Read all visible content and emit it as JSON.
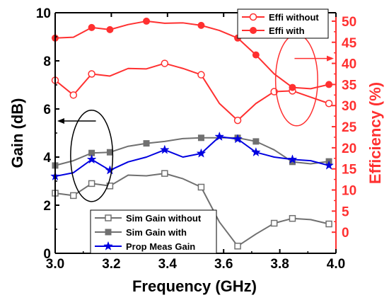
{
  "chart_data": {
    "type": "line",
    "xlabel": "Frequency (GHz)",
    "ylabel_left": "Gain (dB)",
    "ylabel_right": "Efficiency (%)",
    "xlim": [
      3.0,
      4.0
    ],
    "ylim_left": [
      0,
      10
    ],
    "ylim_right": [
      -5,
      52
    ],
    "x_ticks": [
      "3.0",
      "3.2",
      "3.4",
      "3.6",
      "3.8",
      "4.0"
    ],
    "y_left_ticks": [
      "0",
      "2",
      "4",
      "6",
      "8",
      "10"
    ],
    "y_right_ticks": [
      "0",
      "5",
      "10",
      "15",
      "20",
      "25",
      "30",
      "35",
      "40",
      "45",
      "50"
    ],
    "grid": false,
    "colors": {
      "gray": "#707070",
      "blue": "#0000e0",
      "red": "#ff3030",
      "black": "#000000"
    },
    "series": [
      {
        "name": "Sim Gain without",
        "axis": "left",
        "color": "#707070",
        "marker": "square-open",
        "x": [
          3.0,
          3.065,
          3.13,
          3.195,
          3.26,
          3.325,
          3.39,
          3.455,
          3.52,
          3.585,
          3.65,
          3.715,
          3.78,
          3.845,
          3.91,
          3.975
        ],
        "y": [
          2.5,
          2.4,
          2.9,
          2.8,
          3.25,
          3.22,
          3.32,
          3.1,
          2.75,
          1.3,
          0.3,
          0.8,
          1.25,
          1.45,
          1.4,
          1.22
        ],
        "marker_x": [
          3.0,
          3.065,
          3.13,
          3.195,
          3.39,
          3.52,
          3.65,
          3.78,
          3.845,
          3.975
        ],
        "marker_y": [
          2.5,
          2.4,
          2.9,
          2.8,
          3.32,
          2.75,
          0.3,
          1.25,
          1.45,
          1.22
        ]
      },
      {
        "name": "Sim Gain with",
        "axis": "left",
        "color": "#707070",
        "marker": "square-filled",
        "x": [
          3.0,
          3.065,
          3.13,
          3.195,
          3.26,
          3.325,
          3.39,
          3.455,
          3.52,
          3.585,
          3.65,
          3.715,
          3.78,
          3.845,
          3.91,
          3.975
        ],
        "y": [
          3.65,
          3.85,
          4.17,
          4.2,
          4.45,
          4.57,
          4.65,
          4.77,
          4.8,
          4.8,
          4.8,
          4.65,
          4.3,
          3.8,
          3.72,
          3.82
        ],
        "marker_x": [
          3.0,
          3.13,
          3.195,
          3.325,
          3.52,
          3.65,
          3.715,
          3.845,
          3.975
        ],
        "marker_y": [
          3.65,
          4.17,
          4.2,
          4.57,
          4.8,
          4.8,
          4.65,
          3.8,
          3.82
        ]
      },
      {
        "name": "Prop Meas Gain",
        "axis": "left",
        "color": "#0000e0",
        "marker": "star",
        "x": [
          3.0,
          3.065,
          3.13,
          3.195,
          3.26,
          3.325,
          3.39,
          3.455,
          3.52,
          3.585,
          3.65,
          3.715,
          3.78,
          3.845,
          3.91,
          3.975
        ],
        "y": [
          3.2,
          3.35,
          3.9,
          3.45,
          3.8,
          4.0,
          4.3,
          4.0,
          4.15,
          4.85,
          4.75,
          4.2,
          4.0,
          3.9,
          3.85,
          3.65
        ],
        "marker_x": [
          3.0,
          3.13,
          3.195,
          3.39,
          3.52,
          3.585,
          3.65,
          3.715,
          3.845,
          3.975
        ],
        "marker_y": [
          3.2,
          3.9,
          3.45,
          4.3,
          4.15,
          4.85,
          4.75,
          4.2,
          3.9,
          3.65
        ]
      },
      {
        "name": "Effi without",
        "axis": "right",
        "color": "#ff3030",
        "marker": "circle-open",
        "x": [
          3.0,
          3.065,
          3.13,
          3.195,
          3.26,
          3.325,
          3.39,
          3.455,
          3.52,
          3.585,
          3.65,
          3.715,
          3.78,
          3.845,
          3.91,
          3.975
        ],
        "y": [
          36.0,
          32.5,
          37.5,
          37.0,
          38.8,
          38.7,
          40.0,
          38.8,
          37.3,
          30.5,
          26.5,
          30.5,
          33.3,
          33.5,
          32.0,
          30.5
        ],
        "marker_x": [
          3.0,
          3.065,
          3.13,
          3.39,
          3.52,
          3.65,
          3.78,
          3.845,
          3.975
        ],
        "marker_y": [
          36.0,
          32.5,
          37.5,
          40.0,
          37.3,
          26.5,
          33.3,
          33.5,
          30.5
        ]
      },
      {
        "name": "Effi with",
        "axis": "right",
        "color": "#ff3030",
        "marker": "circle-filled",
        "x": [
          3.0,
          3.065,
          3.13,
          3.195,
          3.26,
          3.325,
          3.39,
          3.455,
          3.52,
          3.585,
          3.65,
          3.715,
          3.78,
          3.845,
          3.91,
          3.975
        ],
        "y": [
          46.0,
          46.2,
          48.5,
          48.0,
          49.2,
          50.0,
          49.5,
          49.6,
          49.0,
          47.8,
          46.0,
          42.0,
          37.5,
          34.3,
          34.0,
          35.0
        ],
        "marker_x": [
          3.0,
          3.13,
          3.195,
          3.325,
          3.52,
          3.65,
          3.715,
          3.845,
          3.975
        ],
        "marker_y": [
          46.0,
          48.5,
          48.0,
          50.0,
          49.0,
          46.0,
          42.0,
          34.3,
          35.0
        ]
      }
    ],
    "legends": [
      {
        "placement": "top-right",
        "entries": [
          "Effi without",
          "Effi with"
        ]
      },
      {
        "placement": "bottom-left",
        "entries": [
          "Sim Gain without",
          "Sim Gain with",
          "Prop Meas Gain"
        ]
      }
    ],
    "annotations": [
      {
        "type": "ellipse",
        "color": "#000000",
        "center": {
          "x": 3.13,
          "y_left": 4.05
        },
        "radius_x_units": 0.075,
        "radius_y_units_left": 1.9,
        "arrow": "to-left-axis",
        "arrow_at_y_left": 5.5
      },
      {
        "type": "ellipse",
        "color": "#ff3030",
        "center": {
          "x": 3.86,
          "y_left": 7.2
        },
        "radius_x_units": 0.075,
        "radius_y_units_left": 1.9,
        "arrow": "to-right-axis",
        "arrow_at_y_left": 8.1
      }
    ]
  }
}
